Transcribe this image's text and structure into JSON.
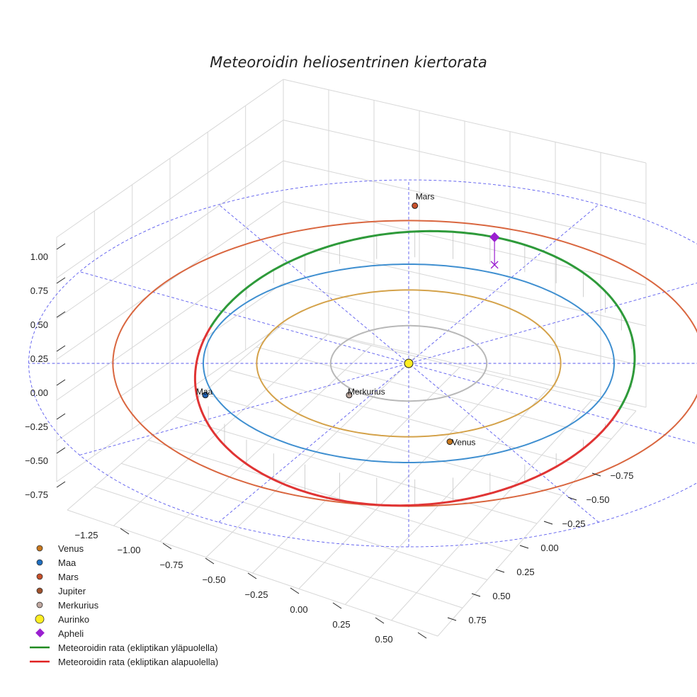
{
  "chart_data": {
    "type": "3d-orbit",
    "title": "Meteoroidin heliosentrinen kiertorata",
    "z_ticks": [
      "1.00",
      "0.75",
      "0.50",
      "0.25",
      "0.00",
      "−0.25",
      "−0.50",
      "−0.75"
    ],
    "x_ticks": [
      "−1.25",
      "−1.00",
      "−0.75",
      "−0.50",
      "−0.25",
      "0.00",
      "0.25",
      "0.50"
    ],
    "y_ticks": [
      "−0.75",
      "−0.50",
      "−0.25",
      "0.00",
      "0.25",
      "0.50",
      "0.75"
    ],
    "orbits": [
      {
        "name": "Merkurius",
        "color": "#b8b8b8",
        "radius_au": 0.39
      },
      {
        "name": "Venus",
        "color": "#d4a24a",
        "radius_au": 0.72
      },
      {
        "name": "Maa",
        "color": "#3f8fd0",
        "radius_au": 1.0
      },
      {
        "name": "Mars",
        "color": "#d9663f",
        "radius_au": 1.52
      }
    ],
    "bodies": [
      {
        "name": "Mars",
        "label": "Mars",
        "color": "#c8502a"
      },
      {
        "name": "Maa",
        "label": "Maa",
        "color": "#1f5fb0"
      },
      {
        "name": "Merkurius",
        "label": "Merkurius",
        "color": "#b9a49a"
      },
      {
        "name": "Venus",
        "label": "Venus",
        "color": "#c8781e"
      },
      {
        "name": "Aurinko",
        "label": "",
        "color": "#ffee22"
      }
    ],
    "meteoroid": {
      "above_color": "#2e9a3a",
      "below_color": "#e03434",
      "apheli_color": "#9a1fd0"
    },
    "legend": [
      {
        "label": "Venus",
        "symbol": "circle",
        "color": "#c8781e"
      },
      {
        "label": "Maa",
        "symbol": "circle",
        "color": "#1f6fc0"
      },
      {
        "label": "Mars",
        "symbol": "circle",
        "color": "#c8502a"
      },
      {
        "label": "Jupiter",
        "symbol": "circle",
        "color": "#a0522d"
      },
      {
        "label": "Merkurius",
        "symbol": "circle",
        "color": "#c0a8a0"
      },
      {
        "label": "Aurinko",
        "symbol": "big-circle",
        "color": "#ffee22"
      },
      {
        "label": "Apheli",
        "symbol": "diamond",
        "color": "#9a1fd0"
      },
      {
        "label": "Meteoroidin rata (ekliptikan yläpuolella)",
        "symbol": "line",
        "color": "#1f8a1f"
      },
      {
        "label": "Meteoroidin rata (ekliptikan alapuolella)",
        "symbol": "line",
        "color": "#e02020"
      }
    ]
  }
}
